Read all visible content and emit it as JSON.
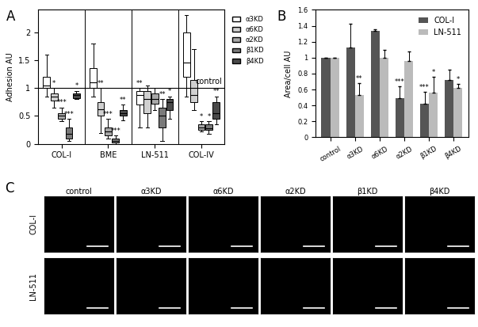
{
  "chart_data": [
    {
      "type": "box",
      "title": "A",
      "y_label": "Adhesion AU",
      "categories": [
        "COL-I",
        "BME",
        "LN-511",
        "COL-IV"
      ],
      "ylim": [
        0,
        2.4
      ],
      "yticks": [
        0,
        0.5,
        1,
        1.5,
        2
      ],
      "legend": "right",
      "reference_line": {
        "value": 1,
        "label": "control"
      },
      "series": [
        {
          "name": "α3KD",
          "color": "#ffffff",
          "stats": [
            [
              0.85,
              1.0,
              1.05,
              1.2,
              1.6
            ],
            [
              0.85,
              1.0,
              1.1,
              1.35,
              1.8
            ],
            [
              0.3,
              0.7,
              0.88,
              0.95,
              1.0
            ],
            [
              0.85,
              1.2,
              1.45,
              2.0,
              2.3
            ]
          ],
          "stars": [
            null,
            null,
            "**",
            null
          ]
        },
        {
          "name": "α6KD",
          "color": "#d0d0d0",
          "stats": [
            [
              0.65,
              0.78,
              0.85,
              0.9,
              1.0
            ],
            [
              0.2,
              0.5,
              0.62,
              0.75,
              1.0
            ],
            [
              0.3,
              0.55,
              0.8,
              0.95,
              1.05
            ],
            [
              0.6,
              0.75,
              0.88,
              1.15,
              1.7
            ]
          ],
          "stars": [
            "*",
            "**",
            null,
            null
          ]
        },
        {
          "name": "α2KD",
          "color": "#a8a8a8",
          "stats": [
            [
              0.4,
              0.45,
              0.5,
              0.55,
              0.65
            ],
            [
              0.1,
              0.15,
              0.22,
              0.3,
              0.45
            ],
            [
              0.6,
              0.72,
              0.8,
              0.9,
              1.0
            ],
            [
              0.22,
              0.25,
              0.3,
              0.35,
              0.4
            ]
          ],
          "stars": [
            "***",
            "***",
            null,
            "*"
          ]
        },
        {
          "name": "β1KD",
          "color": "#7a7a7a",
          "stats": [
            [
              0.05,
              0.1,
              0.18,
              0.3,
              0.45
            ],
            [
              0.0,
              0.02,
              0.05,
              0.1,
              0.15
            ],
            [
              0.05,
              0.3,
              0.5,
              0.65,
              0.8
            ],
            [
              0.18,
              0.25,
              0.28,
              0.35,
              0.4
            ]
          ],
          "stars": [
            "***",
            "***",
            "**",
            "*"
          ]
        },
        {
          "name": "β4KD",
          "color": "#4a4a4a",
          "stats": [
            [
              0.8,
              0.82,
              0.87,
              0.9,
              0.95
            ],
            [
              0.42,
              0.5,
              0.55,
              0.6,
              0.7
            ],
            [
              0.45,
              0.6,
              0.75,
              0.8,
              0.85
            ],
            [
              0.35,
              0.45,
              0.55,
              0.75,
              0.85
            ]
          ],
          "stars": [
            "*",
            "**",
            "*",
            "**"
          ]
        }
      ]
    },
    {
      "type": "bar",
      "title": "B",
      "y_label": "Area/cell AU",
      "categories": [
        "control",
        "α3KD",
        "α6KD",
        "α2KD",
        "β1KD",
        "β4KD"
      ],
      "ylim": [
        0,
        1.6
      ],
      "yticks": [
        0,
        0.2,
        0.4,
        0.6,
        0.8,
        1,
        1.2,
        1.4,
        1.6
      ],
      "legend": "upper right",
      "series": [
        {
          "name": "COL-I",
          "color": "#555555",
          "values": [
            1,
            1.13,
            1.34,
            0.49,
            0.42,
            0.72
          ],
          "errors": [
            0,
            0.3,
            0.02,
            0.15,
            0.15,
            0.13
          ],
          "stars": [
            null,
            null,
            null,
            "***",
            "***",
            null
          ]
        },
        {
          "name": "LN-511",
          "color": "#bbbbbb",
          "values": [
            1,
            0.53,
            1.0,
            0.96,
            0.56,
            0.62
          ],
          "errors": [
            0,
            0.15,
            0.1,
            0.12,
            0.2,
            0.05
          ],
          "stars": [
            null,
            "**",
            null,
            null,
            "*",
            "*"
          ]
        }
      ]
    }
  ],
  "image_grid": {
    "title": "C",
    "columns": [
      "control",
      "α3KD",
      "α6KD",
      "α2KD",
      "β1KD",
      "β4KD"
    ],
    "rows": [
      "COL-I",
      "LN-511"
    ]
  }
}
